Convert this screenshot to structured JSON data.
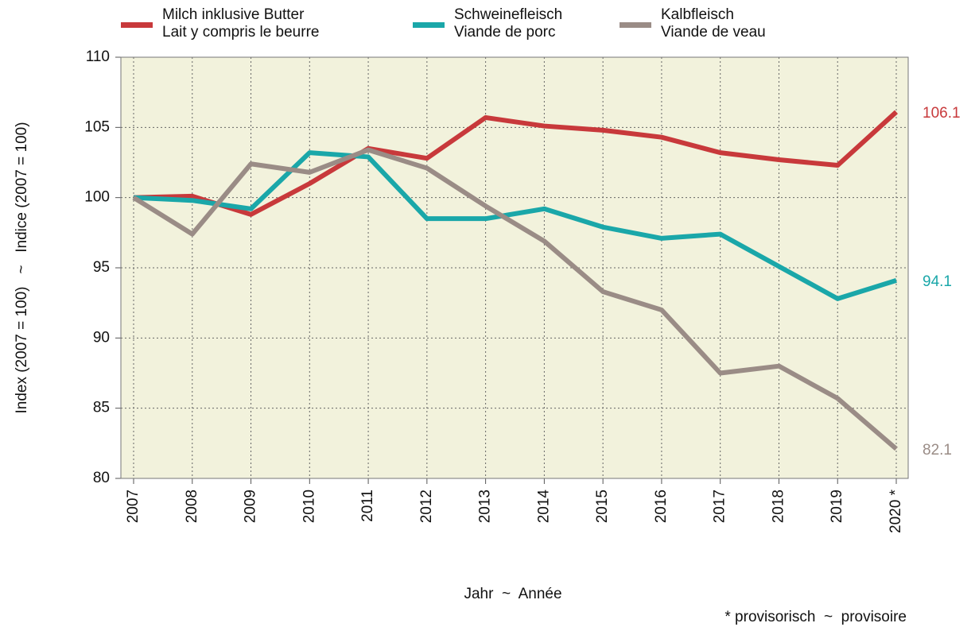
{
  "chart_data": {
    "type": "line",
    "y_label": "Index (2007 = 100)   ~   Indice (2007 = 100)",
    "x_label": "Jahr  ~  Année",
    "footnote": "* provisorisch  ~  provisoire",
    "categories": [
      "2007",
      "2008",
      "2009",
      "2010",
      "2011",
      "2012",
      "2013",
      "2014",
      "2015",
      "2016",
      "2017",
      "2018",
      "2019",
      "2020 *"
    ],
    "series": [
      {
        "name": "Milch inklusive Butter\nLait y compris le beurre",
        "color": "#c8393b",
        "values": [
          100,
          100.1,
          98.8,
          101.0,
          103.5,
          102.8,
          105.7,
          105.1,
          104.8,
          104.3,
          103.2,
          102.7,
          102.3,
          106.1
        ]
      },
      {
        "name": "Schweinefleisch\nViande de porc",
        "color": "#1aa7a9",
        "values": [
          100,
          99.8,
          99.2,
          103.2,
          102.9,
          98.5,
          98.5,
          99.2,
          97.9,
          97.1,
          97.4,
          95.1,
          92.8,
          94.1
        ]
      },
      {
        "name": "Kalbfleisch\nViande de veau",
        "color": "#9a8c86",
        "values": [
          100,
          97.4,
          102.4,
          101.8,
          103.4,
          102.1,
          99.4,
          96.9,
          93.3,
          92.0,
          87.5,
          88.0,
          85.7,
          82.1
        ]
      }
    ],
    "ylim": [
      80,
      110
    ],
    "yticks": [
      80,
      85,
      90,
      95,
      100,
      105,
      110
    ],
    "grid": true
  }
}
